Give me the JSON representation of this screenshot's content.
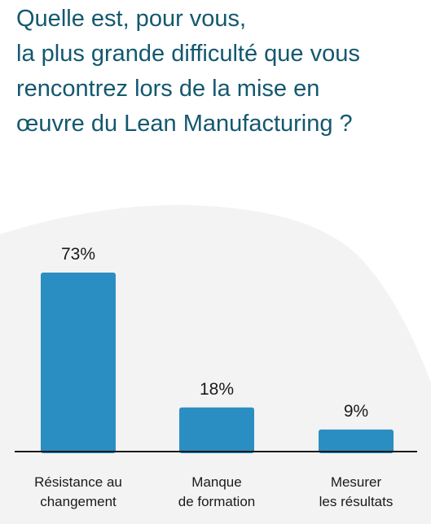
{
  "question": {
    "lines": [
      "Quelle est, pour vous,",
      "la plus grande difficulté que vous",
      "rencontrez lors de la mise en",
      "œuvre du Lean Manufacturing ?"
    ]
  },
  "colors": {
    "title": "#13586f",
    "bar": "#2b8ec2",
    "background_wave": "#f3f3f3",
    "axis": "#1a1a1a"
  },
  "chart_data": {
    "type": "bar",
    "title": "",
    "categories": [
      [
        "Résistance au",
        "changement"
      ],
      [
        "Manque",
        "de formation"
      ],
      [
        "Mesurer",
        "les résultats"
      ]
    ],
    "values": [
      73,
      18,
      9
    ],
    "value_labels": [
      "73%",
      "18%",
      "9%"
    ],
    "unit": "%",
    "ylim": [
      0,
      100
    ],
    "grid": false,
    "legend": "none"
  }
}
